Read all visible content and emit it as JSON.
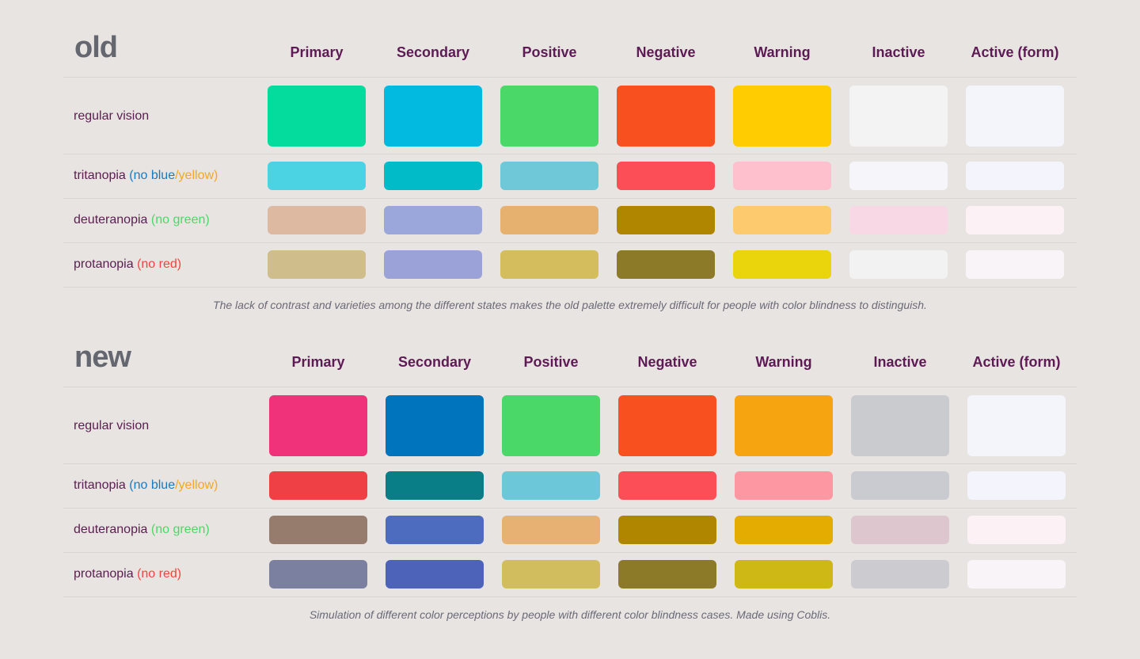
{
  "columns": [
    "Primary",
    "Secondary",
    "Positive",
    "Negative",
    "Warning",
    "Inactive",
    "Active (form)"
  ],
  "note_colors": {
    "blue": "#1A7AC0",
    "yellow": "#F5A623",
    "green": "#4AD968",
    "red": "#F4433F"
  },
  "sections": [
    {
      "title": "old",
      "caption": "The lack of contrast and varieties among the different states makes the old palette extremely difficult for people with color blindness to distinguish.",
      "rows": [
        {
          "label": "regular vision",
          "notes": [],
          "colors": [
            "#03DC9C",
            "#02B9E0",
            "#4AD968",
            "#F8511F",
            "#FECC00",
            "#F4F3F3",
            "#F4F5FA"
          ]
        },
        {
          "label": "tritanopia",
          "notes": [
            {
              "text": "(no blue",
              "color": "blue"
            },
            {
              "text": "/yellow)",
              "color": "yellow"
            }
          ],
          "colors": [
            "#4CD3E3",
            "#02BBC9",
            "#6EC8D8",
            "#FC4E57",
            "#FDC0CC",
            "#F5F5FA",
            "#F4F5FC"
          ]
        },
        {
          "label": "deuteranopia",
          "notes": [
            {
              "text": "(no green)",
              "color": "green"
            }
          ],
          "colors": [
            "#DCB9A0",
            "#9BA6DA",
            "#E6B16E",
            "#B08600",
            "#FDCA6D",
            "#F8D8E4",
            "#FCF1F5"
          ]
        },
        {
          "label": "protanopia",
          "notes": [
            {
              "text": "(no red)",
              "color": "red"
            }
          ],
          "colors": [
            "#CFBE8C",
            "#9AA2D8",
            "#D3BD5C",
            "#8C7A29",
            "#EAD50C",
            "#F3F2F2",
            "#F8F4F8"
          ]
        }
      ]
    },
    {
      "title": "new",
      "caption": "Simulation of different color perceptions by people with different color blindness cases. Made using Coblis.",
      "rows": [
        {
          "label": "regular vision",
          "notes": [],
          "colors": [
            "#EF327A",
            "#0075BD",
            "#4AD968",
            "#F8511F",
            "#F6A40F",
            "#CACBCF",
            "#F4F5FA"
          ]
        },
        {
          "label": "tritanopia",
          "notes": [
            {
              "text": "(no blue",
              "color": "blue"
            },
            {
              "text": "/yellow)",
              "color": "yellow"
            }
          ],
          "colors": [
            "#EE4045",
            "#0A7E86",
            "#6CC8D8",
            "#FC4E57",
            "#FD98A2",
            "#CACBD0",
            "#F4F5FC"
          ]
        },
        {
          "label": "deuteranopia",
          "notes": [
            {
              "text": "(no green)",
              "color": "green"
            }
          ],
          "colors": [
            "#967C6D",
            "#4D6CBF",
            "#E6B172",
            "#B08600",
            "#E4AC00",
            "#DDC6CE",
            "#FCF1F5"
          ]
        },
        {
          "label": "protanopia",
          "notes": [
            {
              "text": "(no red)",
              "color": "red"
            }
          ],
          "colors": [
            "#7B80A0",
            "#4D63BA",
            "#D2BD5E",
            "#8C7A29",
            "#CEB815",
            "#CCCBCF",
            "#F8F4F8"
          ]
        }
      ]
    }
  ]
}
